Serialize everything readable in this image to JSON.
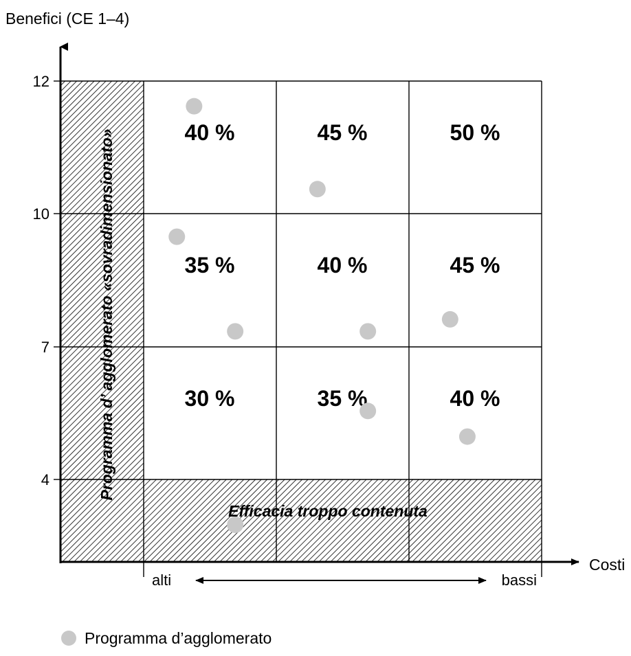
{
  "chart_data": {
    "type": "scatter",
    "ylabel": "Benefici (CE 1–4)",
    "xlabel": "Costi",
    "y_ticks": [
      "4",
      "7",
      "10",
      "12"
    ],
    "x_scale": {
      "left_label": "alti",
      "right_label": "bassi"
    },
    "zones": {
      "left": "Programma d’ agglomerato «sovradimensionato»",
      "bottom": "Efficacia troppo contenuta"
    },
    "columns": [
      "1",
      "2",
      "3"
    ],
    "rows": [
      "4–7",
      "7–10",
      "10–12"
    ],
    "grid_percentages": [
      [
        "30 %",
        "35 %",
        "40 %"
      ],
      [
        "35 %",
        "40 %",
        "45 %"
      ],
      [
        "40 %",
        "45 %",
        "50 %"
      ]
    ],
    "points": [
      {
        "col": 1.38,
        "y": 11.62
      },
      {
        "col": 2.31,
        "y": 10.37
      },
      {
        "col": 1.25,
        "y": 9.48
      },
      {
        "col": 1.69,
        "y": 7.35
      },
      {
        "col": 2.69,
        "y": 7.35
      },
      {
        "col": 3.31,
        "y": 7.62
      },
      {
        "col": 2.69,
        "y": 5.55
      },
      {
        "col": 3.44,
        "y": 4.97
      },
      {
        "col": 1.69,
        "y": 3.45
      }
    ],
    "legend": {
      "label": "Programma d’agglomerato",
      "color": "#c8c8c8"
    }
  },
  "colors": {
    "point": "#c8c8c8",
    "hatch": "#000000",
    "axis": "#000000"
  }
}
